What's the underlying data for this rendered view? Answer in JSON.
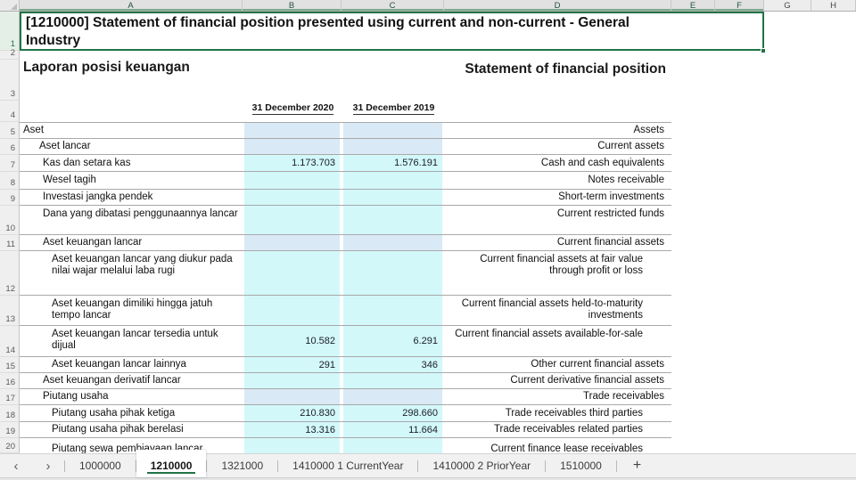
{
  "columns": [
    "A",
    "B",
    "C",
    "D",
    "E",
    "F",
    "G",
    "H"
  ],
  "selected_columns": [
    "A",
    "B",
    "C",
    "D",
    "E",
    "F"
  ],
  "cell_a1": {
    "text": "[1210000] Statement of financial position presented using current and non-current - General Industry"
  },
  "report": {
    "title_id": "Laporan posisi keuangan",
    "title_en": "Statement of financial position",
    "date_cols": [
      "31 December 2020",
      "31 December 2019"
    ]
  },
  "rows": [
    {
      "n": 5,
      "label_id": "Aset",
      "label_en": "Assets",
      "val_2020": "",
      "val_2019": "",
      "fill": "subtotal",
      "indent": 0
    },
    {
      "n": 6,
      "label_id": "Aset lancar",
      "label_en": "Current assets",
      "val_2020": "",
      "val_2019": "",
      "fill": "subtotal",
      "indent": 1
    },
    {
      "n": 7,
      "label_id": "Kas dan setara kas",
      "label_en": "Cash and cash equivalents",
      "val_2020": "1.173.703",
      "val_2019": "1.576.191",
      "fill": "input",
      "indent": 2
    },
    {
      "n": 8,
      "label_id": "Wesel tagih",
      "label_en": "Notes receivable",
      "val_2020": "",
      "val_2019": "",
      "fill": "input",
      "indent": 2
    },
    {
      "n": 9,
      "label_id": "Investasi jangka pendek",
      "label_en": "Short-term investments",
      "val_2020": "",
      "val_2019": "",
      "fill": "input",
      "indent": 2
    },
    {
      "n": 10,
      "label_id": "Dana yang dibatasi penggunaannya lancar",
      "label_en": "Current restricted funds",
      "val_2020": "",
      "val_2019": "",
      "fill": "input",
      "indent": 2
    },
    {
      "n": 11,
      "label_id": "Aset keuangan lancar",
      "label_en": "Current financial assets",
      "val_2020": "",
      "val_2019": "",
      "fill": "subtotal",
      "indent": 2
    },
    {
      "n": 12,
      "label_id": "Aset keuangan lancar yang diukur pada nilai wajar melalui laba rugi",
      "label_en": "Current financial assets at fair value through profit or loss",
      "val_2020": "",
      "val_2019": "",
      "fill": "input",
      "indent": 3
    },
    {
      "n": 13,
      "label_id": "Aset keuangan dimiliki hingga jatuh tempo lancar",
      "label_en": "Current financial assets held-to-maturity investments",
      "val_2020": "",
      "val_2019": "",
      "fill": "input",
      "indent": 3
    },
    {
      "n": 14,
      "label_id": "Aset keuangan lancar tersedia untuk dijual",
      "label_en": "Current financial assets available-for-sale",
      "val_2020": "10.582",
      "val_2019": "6.291",
      "fill": "input",
      "indent": 3
    },
    {
      "n": 15,
      "label_id": "Aset keuangan lancar lainnya",
      "label_en": "Other current financial assets",
      "val_2020": "291",
      "val_2019": "346",
      "fill": "input",
      "indent": 3
    },
    {
      "n": 16,
      "label_id": "Aset keuangan derivatif lancar",
      "label_en": "Current derivative financial assets",
      "val_2020": "",
      "val_2019": "",
      "fill": "input",
      "indent": 2
    },
    {
      "n": 17,
      "label_id": "Piutang usaha",
      "label_en": "Trade receivables",
      "val_2020": "",
      "val_2019": "",
      "fill": "subtotal",
      "indent": 2
    },
    {
      "n": 18,
      "label_id": "Piutang usaha pihak ketiga",
      "label_en": "Trade receivables third parties",
      "val_2020": "210.830",
      "val_2019": "298.660",
      "fill": "input",
      "indent": 3
    },
    {
      "n": 19,
      "label_id": "Piutang usaha pihak berelasi",
      "label_en": "Trade receivables related parties",
      "val_2020": "13.316",
      "val_2019": "11.664",
      "fill": "input",
      "indent": 3
    },
    {
      "n": 20,
      "label_id": "Piutang sewa pembiayaan lancar",
      "label_en": "Current finance lease receivables",
      "val_2020": "",
      "val_2019": "",
      "fill": "input",
      "indent": 3
    }
  ],
  "sheet_tabs": {
    "prev_icon": "‹",
    "next_icon": "›",
    "tabs": [
      "1000000",
      "1210000",
      "1321000",
      "1410000 1 CurrentYear",
      "1410000 2 PriorYear",
      "1510000"
    ],
    "active": "1210000",
    "add_icon": "+"
  },
  "colors": {
    "input_cell": "#D2F8FA",
    "subtotal_cell": "#D9E9F5",
    "selection": "#217346",
    "tab_active_underline": "#217346"
  }
}
